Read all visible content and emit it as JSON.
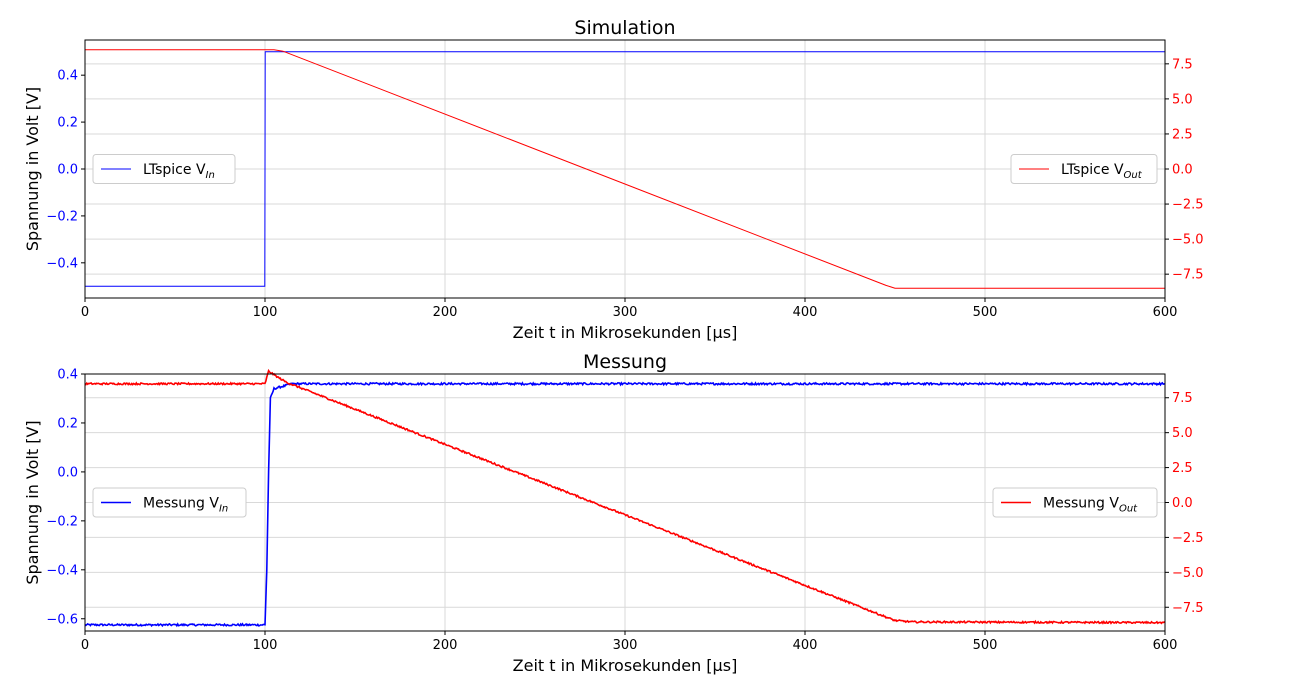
{
  "figure": {
    "panels": 2
  },
  "chart_data": [
    {
      "type": "line",
      "title": "Simulation",
      "xlabel": "Zeit t in Mikrosekunden [μs]",
      "ylabel": "Spannung in Volt [V]",
      "xlim": [
        0,
        600
      ],
      "ylim_left": [
        -0.55,
        0.55
      ],
      "ylim_right": [
        -9.2,
        9.2
      ],
      "x_ticks": [
        0,
        100,
        200,
        300,
        400,
        500,
        600
      ],
      "y_ticks_left": [
        "0.4",
        "0.2",
        "0.0",
        "−0.2",
        "−0.4"
      ],
      "y_ticks_left_values": [
        0.4,
        0.2,
        0.0,
        -0.2,
        -0.4
      ],
      "y_ticks_right": [
        "7.5",
        "5.0",
        "2.5",
        "0.0",
        "−2.5",
        "−5.0",
        "−7.5"
      ],
      "y_ticks_right_values": [
        7.5,
        5.0,
        2.5,
        0.0,
        -2.5,
        -5.0,
        -7.5
      ],
      "grid": true,
      "series": [
        {
          "name": "LTspice V_In",
          "legend_main": "LTspice V",
          "legend_sub": "In",
          "axis": "left",
          "color": "#0000ff",
          "noisy": false,
          "legend_position": "center-left",
          "x": [
            0,
            99.9,
            100.1,
            600
          ],
          "y": [
            -0.5,
            -0.5,
            0.5,
            0.5
          ]
        },
        {
          "name": "LTspice V_Out",
          "legend_main": "LTspice V",
          "legend_sub": "Out",
          "axis": "right",
          "color": "#ff0000",
          "noisy": false,
          "legend_position": "center-right",
          "x": [
            0,
            100,
            105,
            110,
            445,
            450,
            600
          ],
          "y": [
            8.5,
            8.5,
            8.5,
            8.4,
            -8.3,
            -8.5,
            -8.5
          ]
        }
      ]
    },
    {
      "type": "line",
      "title": "Messung",
      "xlabel": "Zeit t in Mikrosekunden [μs]",
      "ylabel": "Spannung in Volt [V]",
      "xlim": [
        0,
        600
      ],
      "ylim_left": [
        -0.65,
        0.4
      ],
      "ylim_right": [
        -9.2,
        9.2
      ],
      "x_ticks": [
        0,
        100,
        200,
        300,
        400,
        500,
        600
      ],
      "y_ticks_left": [
        "0.4",
        "0.2",
        "0.0",
        "−0.2",
        "−0.4",
        "−0.6"
      ],
      "y_ticks_left_values": [
        0.4,
        0.2,
        0.0,
        -0.2,
        -0.4,
        -0.6
      ],
      "y_ticks_right": [
        "7.5",
        "5.0",
        "2.5",
        "0.0",
        "−2.5",
        "−5.0",
        "−7.5"
      ],
      "y_ticks_right_values": [
        7.5,
        5.0,
        2.5,
        0.0,
        -2.5,
        -5.0,
        -7.5
      ],
      "grid": true,
      "series": [
        {
          "name": "Messung V_In",
          "legend_main": "Messung V",
          "legend_sub": "In",
          "axis": "left",
          "color": "#0000ff",
          "noisy": true,
          "legend_position": "center-left",
          "x": [
            0,
            100,
            101,
            102,
            103,
            105,
            110,
            115,
            600
          ],
          "y": [
            -0.625,
            -0.625,
            -0.4,
            0.0,
            0.3,
            0.34,
            0.35,
            0.36,
            0.36
          ]
        },
        {
          "name": "Messung V_Out",
          "legend_main": "Messung V",
          "legend_sub": "Out",
          "axis": "right",
          "color": "#ff0000",
          "noisy": true,
          "legend_position": "center-right",
          "x": [
            0,
            100,
            102,
            108,
            112,
            445,
            450,
            460,
            600
          ],
          "y": [
            8.5,
            8.5,
            9.4,
            8.9,
            8.6,
            -8.2,
            -8.45,
            -8.55,
            -8.6
          ]
        }
      ]
    }
  ]
}
